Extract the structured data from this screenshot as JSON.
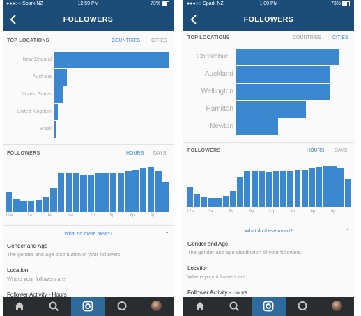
{
  "colors": {
    "header": "#1b4d78",
    "accent": "#3b87d0",
    "tab_bar": "#2a2d30",
    "tab_active": "#2e6a9c"
  },
  "phones": [
    {
      "status": {
        "carrier": "●●●○○ Spark NZ",
        "time": "12:59 PM",
        "battery": "73%"
      },
      "nav": {
        "back_icon": "chevron-left-icon",
        "title": "FOLLOWERS"
      },
      "top_locations": {
        "title": "TOP LOCATIONS",
        "tabs": [
          {
            "label": "COUNTRIES",
            "active": true
          },
          {
            "label": "CITIES",
            "active": false
          }
        ],
        "chart_data": {
          "type": "bar",
          "orientation": "horizontal",
          "categories": [
            "New Zealand",
            "Australia",
            "United States",
            "United Kingdom",
            "Brazil"
          ],
          "values": [
            100,
            11,
            7,
            3,
            1
          ]
        }
      },
      "followers": {
        "title": "FOLLOWERS",
        "tabs": [
          {
            "label": "HOURS",
            "active": true
          },
          {
            "label": "DAYS",
            "active": false
          }
        ],
        "chart_data": {
          "type": "bar",
          "x_labels": [
            "12a",
            "3a",
            "6a",
            "9a",
            "12p",
            "3p",
            "6p",
            "9p"
          ],
          "values": [
            40,
            26,
            22,
            22,
            24,
            30,
            48,
            80,
            79,
            78,
            75,
            76,
            78,
            79,
            79,
            80,
            84,
            86,
            90,
            92,
            84,
            62
          ],
          "ylim": [
            0,
            100
          ]
        }
      },
      "what_do_these_mean": "What do these mean?",
      "info": [
        {
          "title": "Gender and Age",
          "subtitle": "The gender and age distribution of your followers."
        },
        {
          "title": "Location",
          "subtitle": "Where your followers are."
        },
        {
          "title": "Follower Activity - Hours",
          "subtitle": ""
        }
      ],
      "tabbar": [
        {
          "icon": "home-icon",
          "active": false
        },
        {
          "icon": "search-icon",
          "active": false
        },
        {
          "icon": "camera-icon",
          "active": true
        },
        {
          "icon": "activity-icon",
          "active": false
        },
        {
          "icon": "profile-avatar",
          "active": false
        }
      ]
    },
    {
      "status": {
        "carrier": "●●●○○ Spark NZ",
        "time": "1:00 PM",
        "battery": "73%"
      },
      "nav": {
        "back_icon": "chevron-left-icon",
        "title": "FOLLOWERS"
      },
      "top_locations": {
        "title": "TOP LOCATIONS",
        "tabs": [
          {
            "label": "COUNTRIES",
            "active": false
          },
          {
            "label": "CITIES",
            "active": true
          }
        ],
        "chart_data": {
          "type": "bar",
          "orientation": "horizontal",
          "categories": [
            "Christchur...",
            "Auckland",
            "Wellington",
            "Hamilton",
            "Newton"
          ],
          "values": [
            100,
            92,
            92,
            68,
            41
          ]
        }
      },
      "followers": {
        "title": "FOLLOWERS",
        "tabs": [
          {
            "label": "HOURS",
            "active": true
          },
          {
            "label": "DAYS",
            "active": false
          }
        ],
        "chart_data": {
          "type": "bar",
          "x_labels": [
            "12a",
            "3a",
            "6a",
            "9a",
            "12p",
            "3p",
            "6p",
            "9p"
          ],
          "values": [
            42,
            28,
            22,
            20,
            20,
            24,
            34,
            64,
            76,
            78,
            76,
            75,
            76,
            77,
            77,
            80,
            80,
            84,
            86,
            88,
            88,
            84,
            60
          ],
          "ylim": [
            0,
            100
          ]
        }
      },
      "what_do_these_mean": "What do these mean?",
      "info": [
        {
          "title": "Gender and Age",
          "subtitle": "The gender and age distribution of your followers."
        },
        {
          "title": "Location",
          "subtitle": "Where your followers are."
        },
        {
          "title": "Follower Activity - Hours",
          "subtitle": ""
        }
      ],
      "tabbar": [
        {
          "icon": "home-icon",
          "active": false
        },
        {
          "icon": "search-icon",
          "active": false
        },
        {
          "icon": "camera-icon",
          "active": true
        },
        {
          "icon": "activity-icon",
          "active": false
        },
        {
          "icon": "profile-avatar",
          "active": false
        }
      ]
    }
  ]
}
